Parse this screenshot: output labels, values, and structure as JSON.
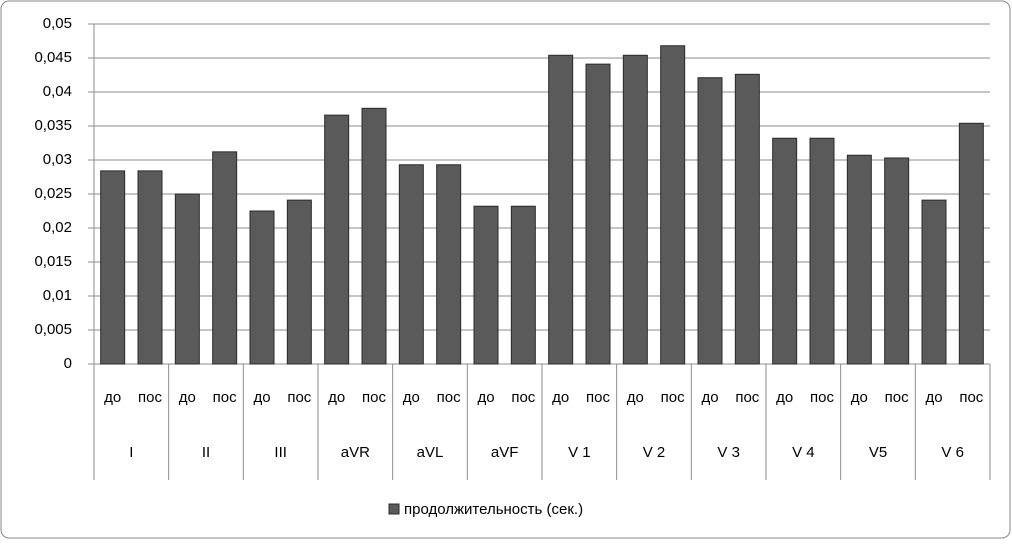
{
  "chart_data": {
    "type": "bar",
    "groups": [
      "I",
      "II",
      "III",
      "aVR",
      "aVL",
      "aVF",
      "V 1",
      "V 2",
      "V 3",
      "V 4",
      "V5",
      "V 6"
    ],
    "categories": [
      "до",
      "пос",
      "до",
      "пос",
      "до",
      "пос",
      "до",
      "пос",
      "до",
      "пос",
      "до",
      "пос",
      "до",
      "пос",
      "до",
      "пос",
      "до",
      "пос",
      "до",
      "пос",
      "до",
      "пос",
      "до",
      "пос"
    ],
    "series": [
      {
        "name": "продолжительность (сек.)",
        "color": "#5a5a5a",
        "values": [
          0.0284,
          0.0284,
          0.025,
          0.0312,
          0.0225,
          0.0241,
          0.0366,
          0.0376,
          0.0293,
          0.0293,
          0.0232,
          0.0232,
          0.0454,
          0.0441,
          0.0454,
          0.0468,
          0.0421,
          0.0426,
          0.0332,
          0.0332,
          0.0307,
          0.0303,
          0.0241,
          0.0354
        ]
      }
    ],
    "ylim": [
      0,
      0.05
    ],
    "yticks": [
      0,
      {
        "value": 0.005,
        "label": "0,005"
      },
      {
        "value": 0.01,
        "label": "0,01"
      },
      {
        "value": 0.015,
        "label": "0,015"
      },
      {
        "value": 0.02,
        "label": "0,02"
      },
      {
        "value": 0.025,
        "label": "0,025"
      },
      {
        "value": 0.03,
        "label": "0,03"
      },
      {
        "value": 0.035,
        "label": "0,035"
      },
      {
        "value": 0.04,
        "label": "0,04"
      },
      {
        "value": 0.045,
        "label": "0,045"
      },
      {
        "value": 0.05,
        "label": "0,05"
      }
    ],
    "grid": true,
    "legend": "bottom"
  }
}
